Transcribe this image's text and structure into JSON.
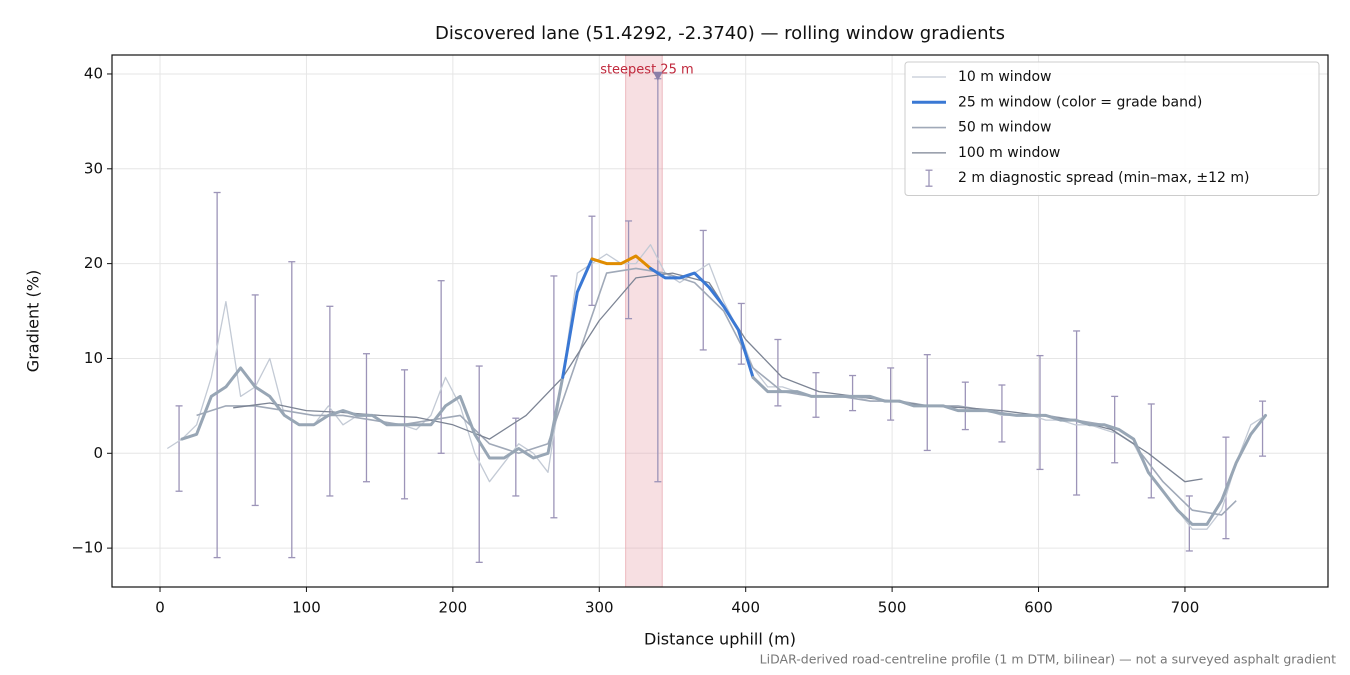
{
  "chart_data": {
    "type": "line",
    "title": "Discovered lane (51.4292, -2.3740) — rolling window gradients",
    "x_label": "Distance uphill (m)",
    "y_label": "Gradient (%)",
    "footnote": "LiDAR-derived road-centreline profile (1 m DTM, bilinear) — not a surveyed asphalt gradient",
    "xlim": [
      -32.8,
      797.7
    ],
    "ylim": [
      -14.1,
      42.0
    ],
    "xticks": [
      0,
      100,
      200,
      300,
      400,
      500,
      600,
      700
    ],
    "yticks": [
      {
        "value": -10,
        "label": "−10"
      },
      0,
      10,
      20,
      30,
      40
    ],
    "grid": true,
    "legend": "upper right",
    "highlight": {
      "x": [
        318,
        343
      ],
      "color": "#e8a3ab",
      "label": "steepest 25 m",
      "label_color": "#c0283c",
      "marker": {
        "x": 340,
        "y": 39.7,
        "color": "#8a7fa8"
      }
    },
    "series": [
      {
        "name": "10 m window",
        "color": "#c3cad5",
        "x": [
          5,
          15,
          25,
          35,
          45,
          55,
          65,
          75,
          85,
          95,
          105,
          115,
          125,
          135,
          145,
          155,
          165,
          175,
          185,
          195,
          205,
          215,
          225,
          235,
          245,
          255,
          265,
          275,
          285,
          295,
          305,
          315,
          325,
          335,
          345,
          355,
          365,
          375,
          385,
          395,
          405,
          415,
          425,
          435,
          445,
          455,
          465,
          475,
          485,
          495,
          505,
          515,
          525,
          535,
          545,
          555,
          565,
          575,
          585,
          595,
          605,
          615,
          625,
          635,
          645,
          655,
          665,
          675,
          685,
          695,
          705,
          715,
          725,
          735,
          745,
          755
        ],
        "values": [
          0.5,
          1.5,
          3,
          8,
          16,
          6,
          7,
          10,
          4,
          3,
          3,
          5,
          3,
          4,
          4,
          3,
          3,
          2.5,
          4,
          8,
          5,
          0,
          -3,
          -1,
          1,
          0,
          -2,
          8,
          19,
          20,
          21,
          20,
          20,
          22,
          19,
          18,
          19,
          20,
          16,
          13,
          9,
          7,
          7,
          6.5,
          6,
          6,
          6,
          6,
          5.5,
          5.5,
          5.5,
          5,
          5,
          5,
          4.5,
          4.5,
          4.5,
          4,
          4,
          4,
          3.5,
          3.5,
          3,
          3,
          2.5,
          2,
          1,
          -2,
          -4,
          -6,
          -8,
          -8,
          -6,
          -1,
          3,
          4
        ]
      },
      {
        "name": "25 m window (color = grade band)",
        "color": "#3a78d4",
        "base_color": "#98a6b5",
        "bands": [
          {
            "from": 10,
            "color": "#3a78d4"
          },
          {
            "from": 20,
            "color": "#e08c00"
          }
        ],
        "x": [
          15,
          25,
          35,
          45,
          55,
          65,
          75,
          85,
          95,
          105,
          115,
          125,
          135,
          145,
          155,
          165,
          175,
          185,
          195,
          205,
          215,
          225,
          235,
          245,
          255,
          265,
          275,
          285,
          295,
          305,
          315,
          325,
          335,
          345,
          355,
          365,
          375,
          385,
          395,
          405,
          415,
          425,
          435,
          445,
          455,
          465,
          475,
          485,
          495,
          505,
          515,
          525,
          535,
          545,
          555,
          565,
          575,
          585,
          595,
          605,
          615,
          625,
          635,
          645,
          655,
          665,
          675,
          685,
          695,
          705,
          715,
          725,
          735,
          745,
          755
        ],
        "values": [
          1.5,
          2,
          6,
          7,
          9,
          7,
          6,
          4,
          3,
          3,
          4,
          4.5,
          4,
          4,
          3,
          3,
          3,
          3,
          5,
          6,
          2,
          -0.5,
          -0.5,
          0.5,
          -0.5,
          0,
          8,
          17,
          20.5,
          20,
          20,
          20.8,
          19.5,
          18.5,
          18.5,
          19,
          17.5,
          15.5,
          13,
          8,
          6.5,
          6.5,
          6.5,
          6,
          6,
          6,
          6,
          6,
          5.5,
          5.5,
          5,
          5,
          5,
          4.5,
          4.5,
          4.5,
          4.2,
          4,
          4,
          4,
          3.5,
          3.5,
          3,
          3,
          2.5,
          1.5,
          -2,
          -4,
          -6,
          -7.5,
          -7.5,
          -5,
          -1,
          2,
          4
        ]
      },
      {
        "name": "50 m window",
        "color": "#a0a9b8",
        "x": [
          25,
          45,
          65,
          85,
          105,
          125,
          145,
          165,
          185,
          205,
          225,
          245,
          265,
          285,
          305,
          325,
          345,
          365,
          385,
          405,
          425,
          445,
          465,
          485,
          505,
          525,
          545,
          565,
          585,
          605,
          625,
          645,
          665,
          685,
          705,
          725,
          735
        ],
        "values": [
          4,
          5,
          5,
          4.5,
          4,
          4,
          3.5,
          3,
          3.5,
          4,
          1,
          0,
          1,
          10,
          19,
          19.5,
          19,
          18,
          15,
          9,
          6.5,
          6,
          6,
          5.5,
          5.5,
          5,
          5,
          4.5,
          4,
          4,
          3.5,
          3,
          1,
          -3,
          -6,
          -6.5,
          -5
        ]
      },
      {
        "name": "100 m window",
        "color": "#7c8494",
        "x": [
          50,
          75,
          100,
          125,
          150,
          175,
          200,
          225,
          250,
          275,
          300,
          325,
          350,
          375,
          400,
          425,
          450,
          475,
          500,
          525,
          550,
          575,
          600,
          625,
          650,
          675,
          700,
          712
        ],
        "values": [
          4.8,
          5.3,
          4.5,
          4.3,
          4,
          3.8,
          3,
          1.5,
          4,
          8,
          14,
          18.5,
          19,
          18,
          12,
          8,
          6.5,
          6,
          5.5,
          5,
          4.8,
          4.5,
          4,
          3.5,
          2.5,
          0,
          -3,
          -2.7
        ]
      }
    ],
    "error_bars": {
      "name": "2 m diagnostic spread (min–max, ±12 m)",
      "color": "#9c94b8",
      "x": [
        13,
        39,
        65,
        90,
        116,
        141,
        167,
        192,
        218,
        243,
        269,
        295,
        320,
        340,
        371,
        397,
        422,
        448,
        473,
        499,
        524,
        550,
        575,
        601,
        626,
        652,
        677,
        703,
        728,
        753
      ],
      "low": [
        -4,
        -11,
        -5.5,
        -11,
        -4.5,
        -3,
        -4.8,
        0,
        -11.5,
        -4.5,
        -6.8,
        15.6,
        14.2,
        -3,
        10.9,
        9.4,
        5,
        3.8,
        4.5,
        3.5,
        0.3,
        2.5,
        1.2,
        -1.7,
        -4.4,
        -1,
        -4.7,
        -10.3,
        -9,
        -0.3
      ],
      "high": [
        5,
        27.5,
        16.7,
        20.2,
        15.5,
        10.5,
        8.8,
        18.2,
        9.2,
        3.7,
        18.7,
        25,
        24.5,
        39.5,
        23.5,
        15.8,
        12,
        8.5,
        8.2,
        9,
        10.4,
        7.5,
        7.2,
        10.3,
        12.9,
        6,
        5.2,
        -4.5,
        1.7,
        5.5
      ]
    }
  }
}
